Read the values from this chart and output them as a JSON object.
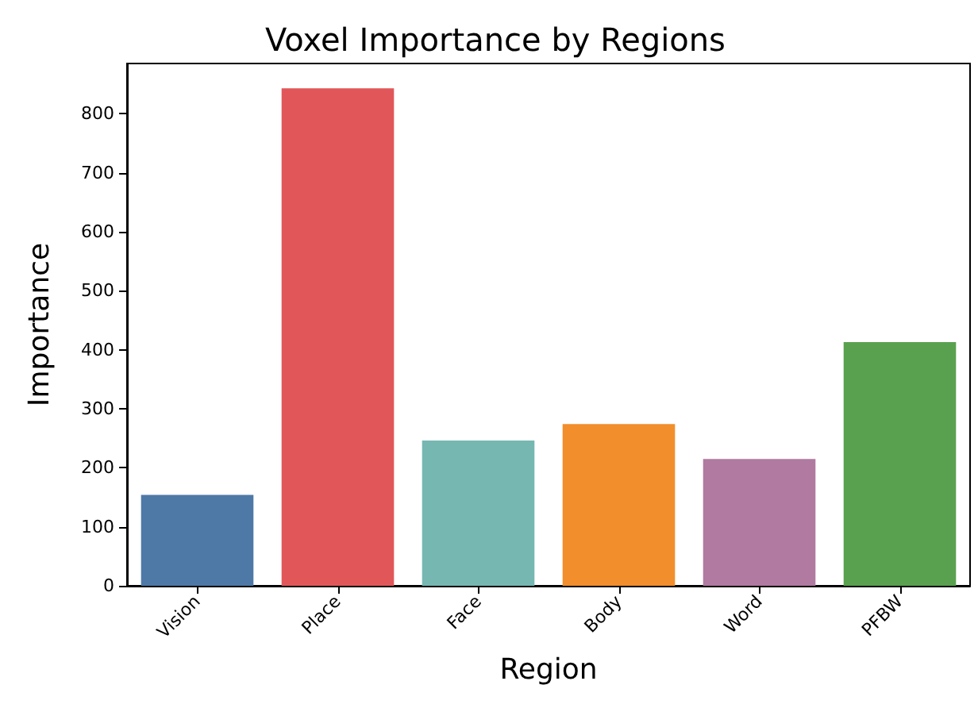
{
  "chart_data": {
    "type": "bar",
    "title": "Voxel Importance by Regions",
    "xlabel": "Region",
    "ylabel": "Importance",
    "categories": [
      "Vision",
      "Place",
      "Face",
      "Body",
      "Word",
      "PFBW"
    ],
    "values": [
      154,
      843,
      246,
      274,
      215,
      413
    ],
    "colors": [
      "#4e79a7",
      "#e15759",
      "#76b7b2",
      "#f28e2b",
      "#b07aa1",
      "#59a14f"
    ],
    "ylim": [
      0,
      885
    ],
    "yticks": [
      0,
      100,
      200,
      300,
      400,
      500,
      600,
      700,
      800
    ],
    "grid": false
  }
}
